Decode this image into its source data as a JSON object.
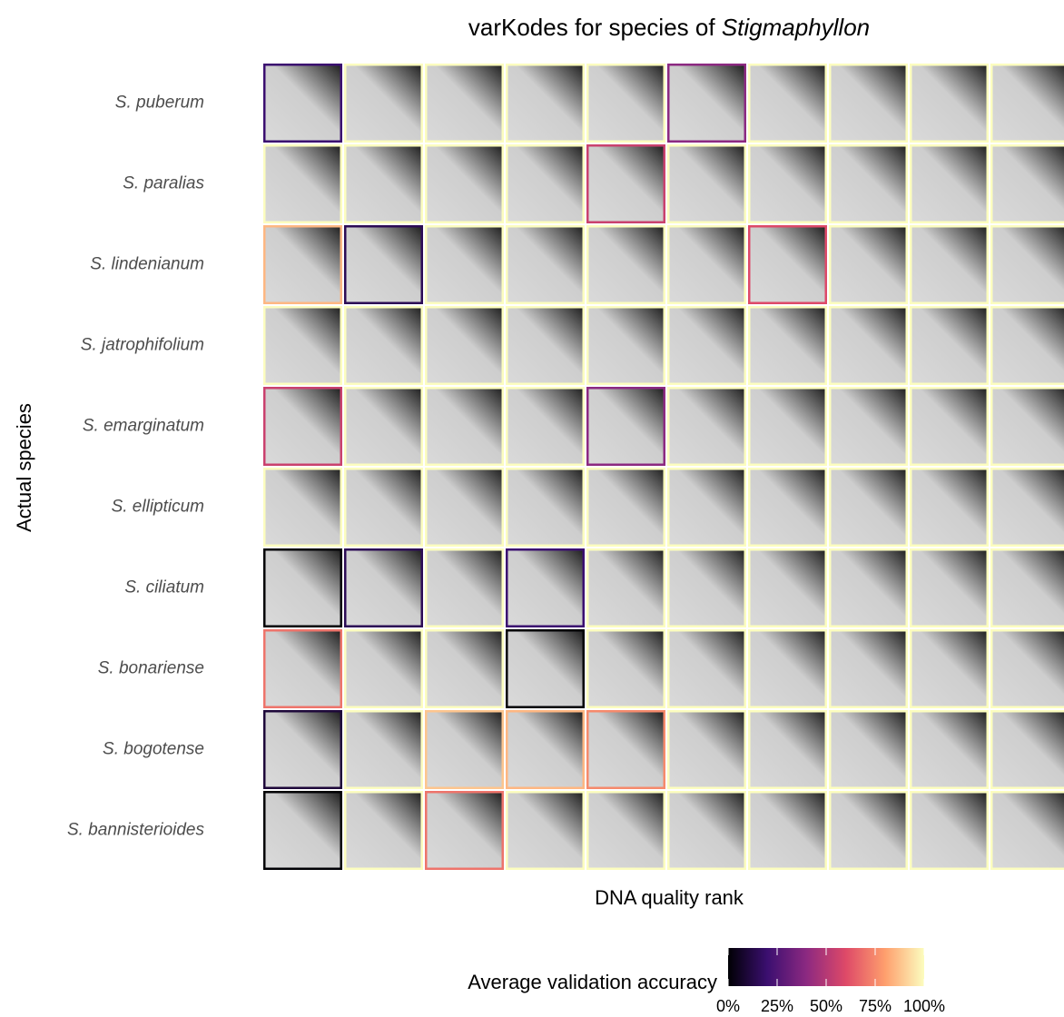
{
  "chart_data": {
    "type": "image-grid",
    "title": "varKodes for species of",
    "title_genus": "Stigmaphyllon",
    "x_label": "DNA quality rank",
    "y_label": "Actual species",
    "categories": [
      "S. puberum",
      "S. paralias",
      "S. lindenianum",
      "S. jatrophifolium",
      "S. emarginatum",
      "S. ellipticum",
      "S. ciliatum",
      "S. bonariense",
      "S. bogotense",
      "S. bannisterioides"
    ],
    "values": [
      [
        20,
        100,
        100,
        100,
        100,
        40,
        100,
        100,
        100,
        100
      ],
      [
        100,
        100,
        100,
        100,
        55,
        100,
        100,
        100,
        100,
        100
      ],
      [
        85,
        15,
        100,
        100,
        100,
        100,
        60,
        100,
        100,
        100
      ],
      [
        100,
        100,
        100,
        100,
        100,
        100,
        100,
        100,
        100,
        100
      ],
      [
        55,
        100,
        100,
        100,
        40,
        100,
        100,
        100,
        100,
        100
      ],
      [
        100,
        100,
        100,
        100,
        100,
        100,
        100,
        100,
        100,
        100
      ],
      [
        0,
        15,
        100,
        20,
        100,
        100,
        100,
        100,
        100,
        100
      ],
      [
        70,
        100,
        100,
        0,
        100,
        100,
        100,
        100,
        100,
        100
      ],
      [
        10,
        100,
        88,
        85,
        75,
        100,
        100,
        100,
        100,
        100
      ],
      [
        0,
        100,
        70,
        100,
        100,
        100,
        100,
        100,
        100,
        100
      ]
    ],
    "legend_title": "Average validation accuracy",
    "clim": [
      0,
      100
    ],
    "cticks": [
      {
        "value": 0,
        "label": "0%"
      },
      {
        "value": 25,
        "label": "25%"
      },
      {
        "value": 50,
        "label": "50%"
      },
      {
        "value": 75,
        "label": "75%"
      },
      {
        "value": 100,
        "label": "100%"
      }
    ],
    "colormap": [
      "#000004",
      "#3b0f70",
      "#8c2981",
      "#de4968",
      "#fe9f6d",
      "#fcfdbf"
    ]
  }
}
